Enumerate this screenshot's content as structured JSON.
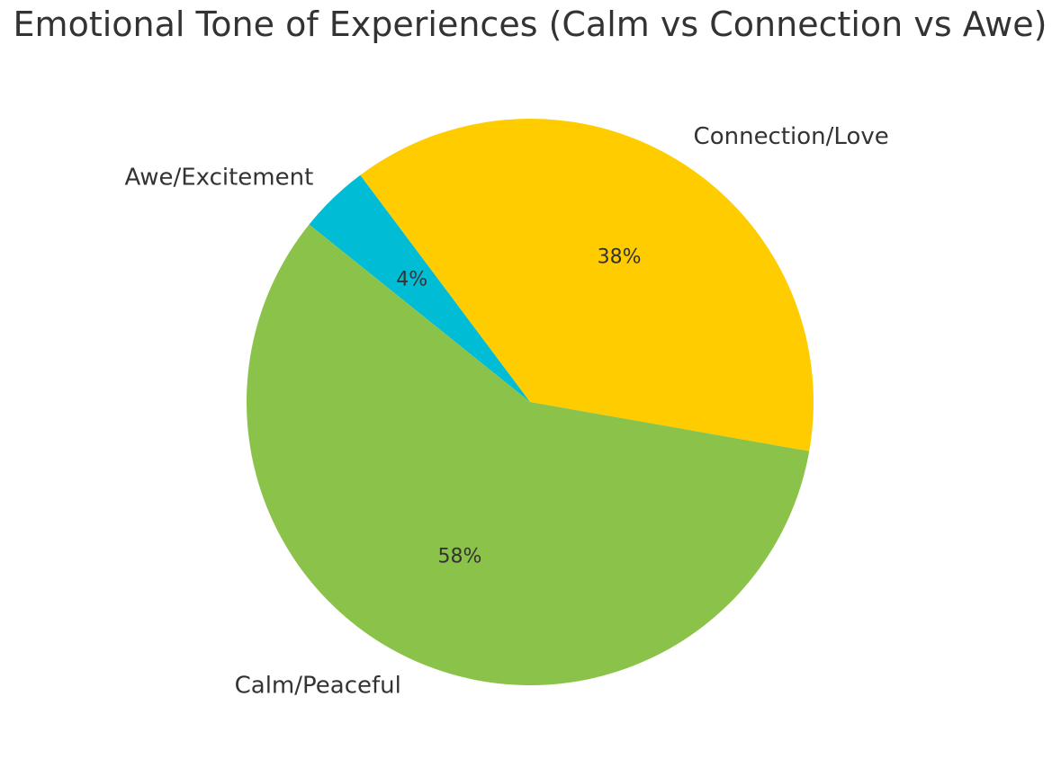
{
  "chart_data": {
    "type": "pie",
    "title": "Emotional Tone of Experiences (Calm vs Connection vs Awe)",
    "categories": [
      "Connection/Love",
      "Awe/Excitement",
      "Calm/Peaceful"
    ],
    "values": [
      38,
      4,
      58
    ],
    "value_labels": [
      "38%",
      "4%",
      "58%"
    ],
    "colors": [
      "#FFCC00",
      "#00BCD4",
      "#8BC34A"
    ],
    "start_angle_deg": -10,
    "direction": "counterclockwise"
  }
}
